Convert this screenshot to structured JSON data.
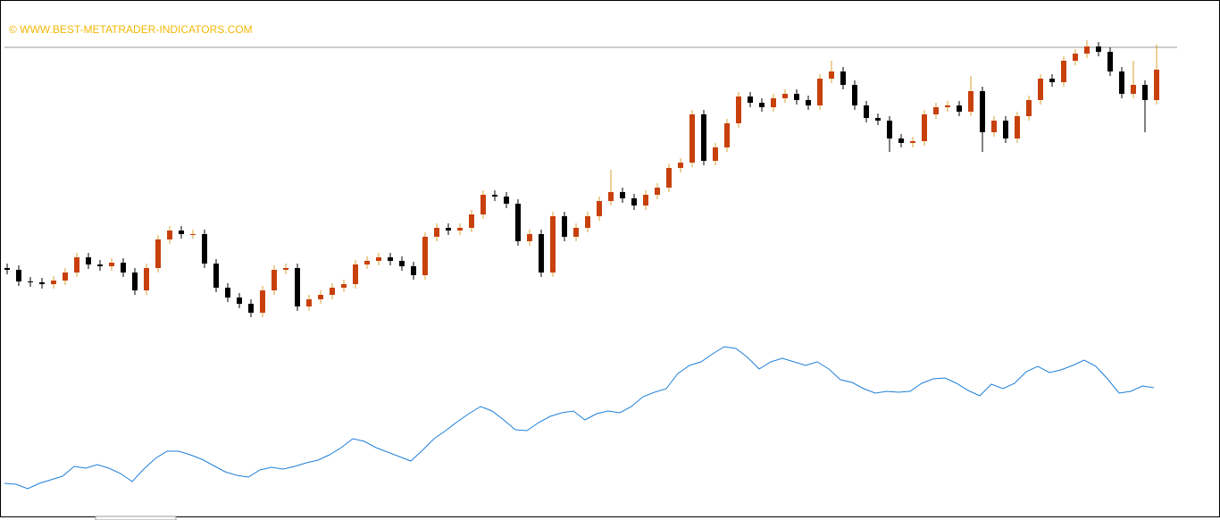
{
  "chart_data": [
    {
      "type": "candlestick",
      "annotation": "© WWW.BEST-METATRADER-INDICATORS.COM",
      "annotation_color": "#f2b705",
      "up_color": "#c8400c",
      "up_wick_color": "#d9a030",
      "down_color": "#000000",
      "price_line": 547,
      "price_line_color": "#9a9a9a",
      "ylim": [
        18,
        600
      ],
      "open": [
        300,
        298,
        285,
        284,
        282,
        286,
        295,
        312,
        304,
        302,
        306,
        295,
        275,
        300,
        332,
        342,
        338,
        338,
        305,
        278,
        267,
        260,
        250,
        275,
        298,
        300,
        257,
        265,
        270,
        278,
        282,
        304,
        308,
        312,
        308,
        302,
        292,
        335,
        345,
        342,
        345,
        360,
        382,
        380,
        372,
        330,
        338,
        295,
        358,
        335,
        345,
        358,
        375,
        385,
        378,
        370,
        382,
        390,
        412,
        418,
        472,
        420,
        435,
        462,
        492,
        485,
        480,
        490,
        495,
        488,
        482,
        512,
        520,
        505,
        482,
        468,
        465,
        445,
        440,
        442,
        472,
        480,
        482,
        475,
        498,
        452,
        465,
        445,
        470,
        488,
        512,
        508,
        532,
        540,
        548,
        542,
        520,
        495,
        505,
        488
      ],
      "high": [
        305,
        303,
        290,
        289,
        291,
        300,
        317,
        317,
        309,
        311,
        311,
        300,
        305,
        337,
        347,
        347,
        343,
        343,
        310,
        283,
        272,
        265,
        280,
        303,
        305,
        305,
        270,
        275,
        283,
        287,
        309,
        313,
        317,
        317,
        313,
        307,
        340,
        350,
        350,
        350,
        365,
        387,
        387,
        385,
        377,
        343,
        343,
        363,
        363,
        350,
        363,
        380,
        410,
        390,
        383,
        387,
        395,
        417,
        423,
        477,
        477,
        440,
        467,
        497,
        497,
        490,
        495,
        500,
        500,
        493,
        517,
        532,
        525,
        510,
        487,
        473,
        470,
        450,
        447,
        477,
        485,
        487,
        487,
        515,
        503,
        470,
        470,
        475,
        493,
        517,
        517,
        537,
        545,
        555,
        553,
        547,
        525,
        532,
        510,
        550
      ],
      "low": [
        293,
        280,
        279,
        277,
        277,
        281,
        290,
        299,
        297,
        297,
        290,
        270,
        270,
        295,
        327,
        333,
        333,
        300,
        273,
        262,
        255,
        245,
        245,
        270,
        293,
        252,
        252,
        260,
        265,
        273,
        277,
        299,
        303,
        303,
        297,
        287,
        287,
        330,
        337,
        337,
        340,
        355,
        375,
        367,
        325,
        325,
        290,
        290,
        330,
        330,
        340,
        353,
        370,
        373,
        365,
        365,
        377,
        385,
        407,
        413,
        415,
        415,
        430,
        457,
        480,
        475,
        475,
        485,
        483,
        477,
        477,
        507,
        500,
        477,
        463,
        460,
        430,
        435,
        435,
        437,
        467,
        475,
        470,
        470,
        430,
        447,
        440,
        440,
        465,
        483,
        503,
        503,
        527,
        535,
        537,
        515,
        490,
        490,
        452,
        483
      ],
      "close": [
        298,
        285,
        284,
        282,
        286,
        295,
        312,
        304,
        302,
        306,
        295,
        275,
        300,
        332,
        342,
        338,
        338,
        305,
        278,
        267,
        260,
        250,
        275,
        298,
        300,
        257,
        265,
        270,
        278,
        282,
        304,
        308,
        312,
        308,
        302,
        292,
        335,
        345,
        342,
        345,
        360,
        382,
        380,
        372,
        330,
        338,
        295,
        358,
        335,
        345,
        358,
        375,
        385,
        378,
        370,
        382,
        390,
        412,
        418,
        472,
        420,
        435,
        462,
        492,
        485,
        480,
        490,
        495,
        488,
        482,
        512,
        520,
        505,
        482,
        468,
        465,
        445,
        440,
        442,
        472,
        480,
        482,
        475,
        498,
        452,
        465,
        445,
        470,
        488,
        512,
        508,
        532,
        540,
        548,
        542,
        520,
        495,
        505,
        488,
        522
      ]
    },
    {
      "type": "line",
      "color": "#1e7fd8",
      "ylim": [
        18,
        600
      ],
      "values": [
        59,
        58,
        53,
        59,
        63,
        67,
        78,
        76,
        80,
        76,
        70,
        61,
        75,
        87,
        95,
        95,
        91,
        86,
        79,
        72,
        68,
        66,
        74,
        77,
        75,
        78,
        82,
        85,
        91,
        99,
        109,
        106,
        99,
        94,
        89,
        84,
        96,
        109,
        118,
        128,
        137,
        145,
        140,
        130,
        119,
        118,
        127,
        134,
        138,
        140,
        130,
        137,
        140,
        138,
        145,
        156,
        161,
        165,
        182,
        191,
        195,
        204,
        212,
        210,
        200,
        187,
        195,
        199,
        195,
        191,
        195,
        187,
        175,
        172,
        165,
        160,
        162,
        161,
        162,
        171,
        176,
        177,
        171,
        163,
        157,
        170,
        165,
        171,
        184,
        190,
        183,
        186,
        191,
        197,
        190,
        176,
        160,
        162,
        168,
        166
      ]
    }
  ]
}
